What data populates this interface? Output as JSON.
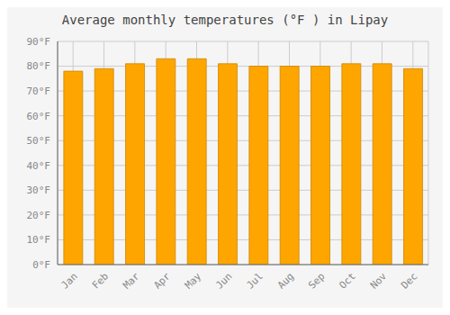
{
  "chart_data": {
    "type": "bar",
    "title": "Average monthly temperatures (°F ) in Lipay",
    "categories": [
      "Jan",
      "Feb",
      "Mar",
      "Apr",
      "May",
      "Jun",
      "Jul",
      "Aug",
      "Sep",
      "Oct",
      "Nov",
      "Dec"
    ],
    "values": [
      78,
      79,
      81,
      83,
      83,
      81,
      80,
      80,
      80,
      81,
      81,
      79
    ],
    "color": "#FFA500",
    "ylim": [
      0,
      90
    ],
    "yticks": [
      {
        "value": 0,
        "label": "0°F"
      },
      {
        "value": 10,
        "label": "10°F"
      },
      {
        "value": 20,
        "label": "20°F"
      },
      {
        "value": 30,
        "label": "30°F"
      },
      {
        "value": 40,
        "label": "40°F"
      },
      {
        "value": 50,
        "label": "50°F"
      },
      {
        "value": 60,
        "label": "60°F"
      },
      {
        "value": 70,
        "label": "70°F"
      },
      {
        "value": 80,
        "label": "80°F"
      },
      {
        "value": 90,
        "label": "90°F"
      }
    ],
    "grid": true
  }
}
